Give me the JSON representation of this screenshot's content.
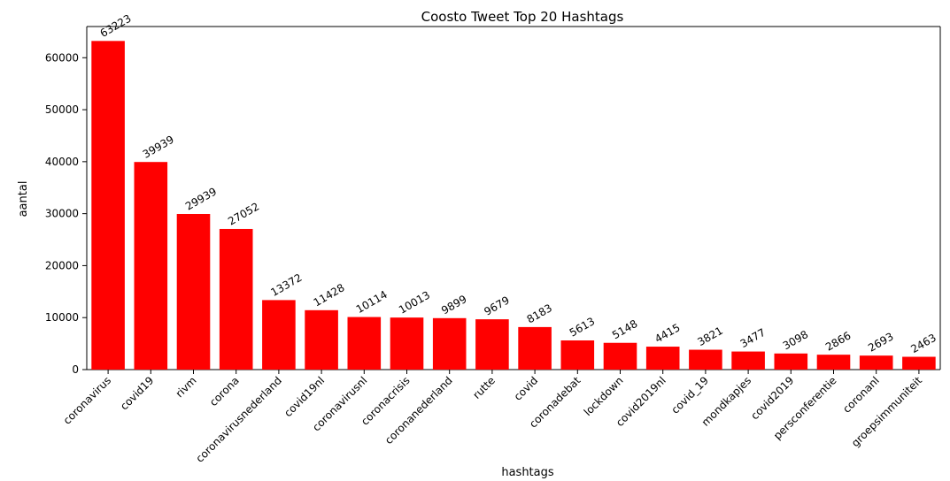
{
  "chart_data": {
    "type": "bar",
    "title": "Coosto Tweet Top 20 Hashtags",
    "xlabel": "hashtags",
    "ylabel": "aantal",
    "ylim": [
      0,
      66000
    ],
    "yticks": [
      0,
      10000,
      20000,
      30000,
      40000,
      50000,
      60000
    ],
    "grid": false,
    "bar_color": "#ff0000",
    "categories": [
      "coronavirus",
      "covid19",
      "rivm",
      "corona",
      "coronavirusnederland",
      "covid19nl",
      "coronavirusnl",
      "coronacrisis",
      "coronanederland",
      "rutte",
      "covid",
      "coronadebat",
      "lockdown",
      "covid2019nl",
      "covid_19",
      "mondkapjes",
      "covid2019",
      "persconferentie",
      "coronanl",
      "groepsimmuniteit"
    ],
    "values": [
      63223,
      39939,
      29939,
      27052,
      13372,
      11428,
      10114,
      10013,
      9899,
      9679,
      8183,
      5613,
      5148,
      4415,
      3821,
      3477,
      3098,
      2866,
      2693,
      2463
    ]
  }
}
